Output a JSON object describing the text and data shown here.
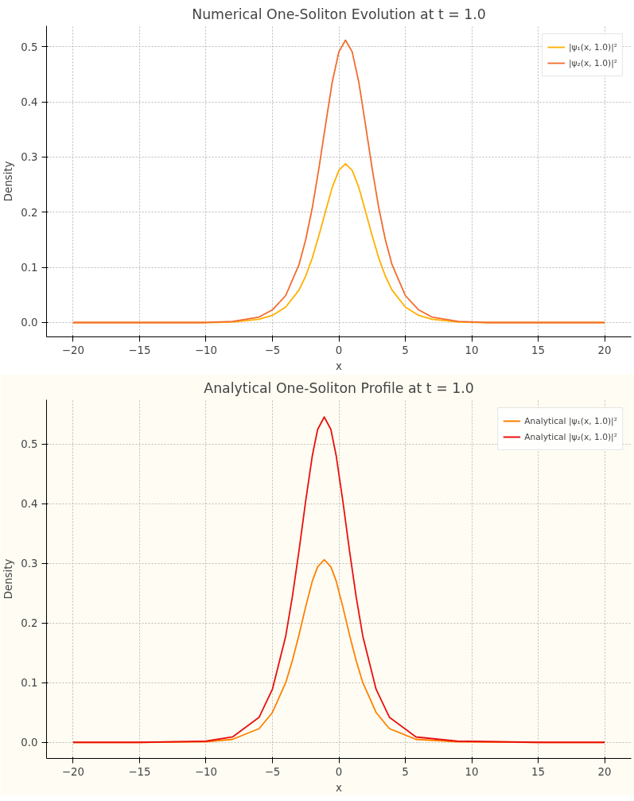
{
  "chart_data": [
    {
      "type": "line",
      "title": "Numerical One-Soliton Evolution at t = 1.0",
      "xlabel": "x",
      "ylabel": "Density",
      "x": [
        -20,
        -15,
        -10,
        -8,
        -6,
        -5,
        -4,
        -3,
        -2.5,
        -2,
        -1.5,
        -1,
        -0.5,
        0,
        0.5,
        1,
        1.5,
        2,
        2.5,
        3,
        3.5,
        4,
        5,
        6,
        7,
        9,
        11,
        15,
        20
      ],
      "series": [
        {
          "name": "|ψ₁(x, 1.0)|²",
          "color": "#ffb000",
          "values": [
            0,
            0,
            0.0,
            0.001,
            0.006,
            0.013,
            0.028,
            0.059,
            0.084,
            0.117,
            0.158,
            0.202,
            0.245,
            0.276,
            0.288,
            0.276,
            0.245,
            0.202,
            0.158,
            0.117,
            0.084,
            0.059,
            0.028,
            0.013,
            0.006,
            0.001,
            0.0,
            0,
            0
          ]
        },
        {
          "name": "|ψ₂(x, 1.0)|²",
          "color": "#f26b2e",
          "values": [
            0,
            0,
            0.0,
            0.002,
            0.01,
            0.023,
            0.049,
            0.105,
            0.15,
            0.208,
            0.28,
            0.359,
            0.436,
            0.491,
            0.512,
            0.491,
            0.436,
            0.359,
            0.28,
            0.208,
            0.15,
            0.105,
            0.049,
            0.023,
            0.01,
            0.002,
            0.0,
            0,
            0
          ]
        }
      ],
      "xlim": [
        -22,
        22
      ],
      "ylim": [
        -0.026,
        0.538
      ],
      "xticks": [
        {
          "value": -20,
          "label": "−20"
        },
        {
          "value": -15,
          "label": "−15"
        },
        {
          "value": -10,
          "label": "−10"
        },
        {
          "value": -5,
          "label": "−5"
        },
        0,
        5,
        10,
        15,
        20
      ],
      "yticks": [
        {
          "value": 0,
          "label": "0.0"
        },
        {
          "value": 0.1,
          "label": "0.1"
        },
        {
          "value": 0.2,
          "label": "0.2"
        },
        {
          "value": 0.3,
          "label": "0.3"
        },
        {
          "value": 0.4,
          "label": "0.4"
        },
        {
          "value": 0.5,
          "label": "0.5"
        }
      ],
      "grid": true,
      "legend": "top right",
      "line_style": "solid"
    },
    {
      "type": "line",
      "title": "Analytical One-Soliton Profile at t = 1.0",
      "xlabel": "x",
      "ylabel": "Density",
      "x": [
        -20,
        -15,
        -10,
        -8,
        -6,
        -5,
        -4,
        -3.5,
        -3,
        -2.5,
        -2,
        -1.6,
        -1.1,
        -0.6,
        -0.2,
        0.3,
        0.8,
        1.3,
        1.8,
        2.8,
        3.8,
        5.8,
        8.9,
        15,
        20
      ],
      "series": [
        {
          "name": "Analytical |ψ₁(x, 1.0)|²",
          "color": "#ff8000",
          "values": [
            0,
            0,
            0.001,
            0.005,
            0.023,
            0.05,
            0.1,
            0.137,
            0.18,
            0.227,
            0.27,
            0.294,
            0.306,
            0.294,
            0.27,
            0.227,
            0.18,
            0.137,
            0.1,
            0.05,
            0.023,
            0.005,
            0.001,
            0,
            0
          ]
        },
        {
          "name": "Analytical |ψ₂(x, 1.0)|²",
          "color": "#e8100e",
          "values": [
            0,
            0,
            0.002,
            0.009,
            0.042,
            0.089,
            0.178,
            0.244,
            0.321,
            0.404,
            0.48,
            0.524,
            0.545,
            0.524,
            0.48,
            0.404,
            0.321,
            0.244,
            0.178,
            0.089,
            0.042,
            0.009,
            0.002,
            0,
            0
          ]
        }
      ],
      "xlim": [
        -22,
        22
      ],
      "ylim": [
        -0.027,
        0.574
      ],
      "xticks": [
        {
          "value": -20,
          "label": "−20"
        },
        {
          "value": -15,
          "label": "−15"
        },
        {
          "value": -10,
          "label": "−10"
        },
        {
          "value": -5,
          "label": "−5"
        },
        0,
        5,
        10,
        15,
        20
      ],
      "yticks": [
        {
          "value": 0,
          "label": "0.0"
        },
        {
          "value": 0.1,
          "label": "0.1"
        },
        {
          "value": 0.2,
          "label": "0.2"
        },
        {
          "value": 0.3,
          "label": "0.3"
        },
        {
          "value": 0.4,
          "label": "0.4"
        },
        {
          "value": 0.5,
          "label": "0.5"
        }
      ],
      "grid": true,
      "legend": "top right",
      "line_style": "solid"
    }
  ]
}
